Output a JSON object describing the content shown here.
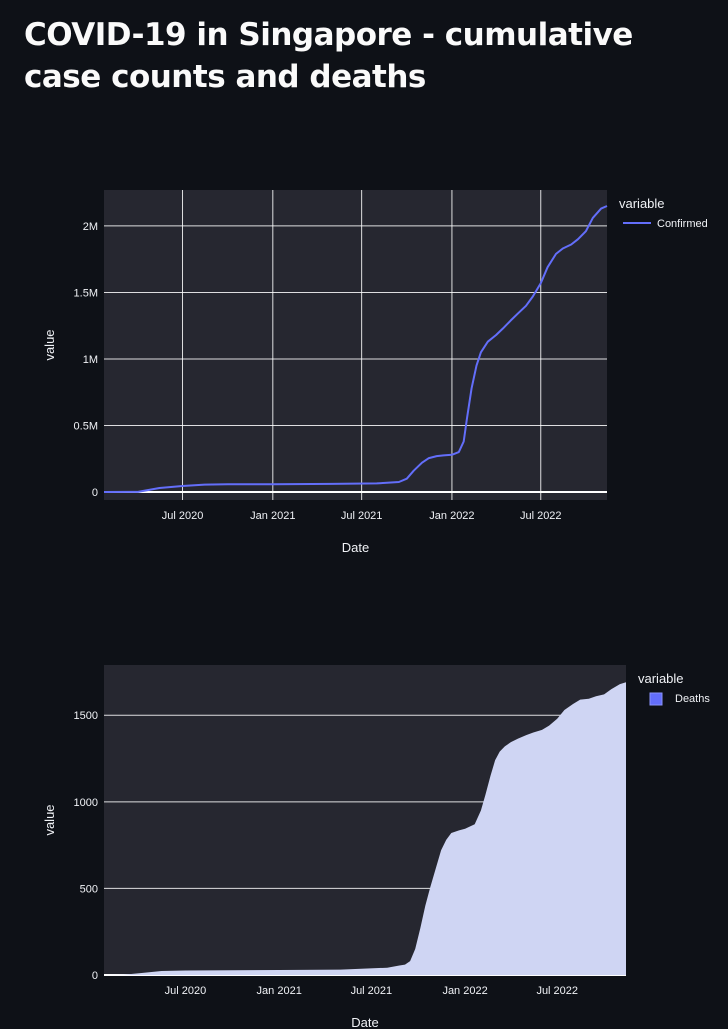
{
  "page": {
    "title": "COVID-19 in Singapore - cumulative case counts and deaths"
  },
  "colors": {
    "background": "#0e1117",
    "plot_background": "#262730",
    "grid": "#ffffff",
    "confirmed_line": "#636efa",
    "deaths_fill": "#cfd5f3",
    "deaths_legend": "#636efa"
  },
  "chart_data": [
    {
      "type": "line",
      "xlabel": "Date",
      "ylabel": "value",
      "xlim": [
        "2020-01-23",
        "2022-11-13"
      ],
      "ylim": [
        -60000,
        2270000
      ],
      "x_ticks": [
        {
          "value": "2020-07-01",
          "label": "Jul 2020"
        },
        {
          "value": "2021-01-01",
          "label": "Jan 2021"
        },
        {
          "value": "2021-07-01",
          "label": "Jul 2021"
        },
        {
          "value": "2022-01-01",
          "label": "Jan 2022"
        },
        {
          "value": "2022-07-01",
          "label": "Jul 2022"
        }
      ],
      "y_ticks": [
        {
          "value": 0,
          "label": "0"
        },
        {
          "value": 500000,
          "label": "0.5M"
        },
        {
          "value": 1000000,
          "label": "1M"
        },
        {
          "value": 1500000,
          "label": "1.5M"
        },
        {
          "value": 2000000,
          "label": "2M"
        }
      ],
      "legend": {
        "title": "variable",
        "position": "top-right"
      },
      "series": [
        {
          "name": "Confirmed",
          "x": [
            "2020-01-23",
            "2020-04-01",
            "2020-05-15",
            "2020-07-01",
            "2020-08-15",
            "2020-10-01",
            "2021-01-01",
            "2021-05-01",
            "2021-08-01",
            "2021-09-15",
            "2021-10-01",
            "2021-10-15",
            "2021-11-01",
            "2021-11-15",
            "2021-12-01",
            "2021-12-15",
            "2022-01-01",
            "2022-01-15",
            "2022-01-25",
            "2022-02-01",
            "2022-02-10",
            "2022-02-20",
            "2022-03-01",
            "2022-03-15",
            "2022-04-01",
            "2022-04-15",
            "2022-05-01",
            "2022-05-15",
            "2022-06-01",
            "2022-06-15",
            "2022-07-01",
            "2022-07-15",
            "2022-08-01",
            "2022-08-15",
            "2022-09-01",
            "2022-09-15",
            "2022-10-01",
            "2022-10-15",
            "2022-11-01",
            "2022-11-13"
          ],
          "y": [
            0,
            1000,
            30000,
            45000,
            56000,
            58000,
            59000,
            61000,
            65000,
            75000,
            100000,
            160000,
            220000,
            255000,
            270000,
            275000,
            280000,
            300000,
            380000,
            560000,
            780000,
            950000,
            1050000,
            1130000,
            1180000,
            1230000,
            1290000,
            1340000,
            1400000,
            1470000,
            1570000,
            1690000,
            1790000,
            1830000,
            1860000,
            1900000,
            1960000,
            2060000,
            2130000,
            2150000
          ]
        }
      ]
    },
    {
      "type": "area",
      "xlabel": "Date",
      "ylabel": "value",
      "xlim": [
        "2020-01-23",
        "2022-11-13"
      ],
      "ylim": [
        0,
        1790
      ],
      "x_ticks": [
        {
          "value": "2020-07-01",
          "label": "Jul 2020"
        },
        {
          "value": "2021-01-01",
          "label": "Jan 2021"
        },
        {
          "value": "2021-07-01",
          "label": "Jul 2021"
        },
        {
          "value": "2022-01-01",
          "label": "Jan 2022"
        },
        {
          "value": "2022-07-01",
          "label": "Jul 2022"
        }
      ],
      "y_ticks": [
        {
          "value": 0,
          "label": "0"
        },
        {
          "value": 500,
          "label": "500"
        },
        {
          "value": 1000,
          "label": "1000"
        },
        {
          "value": 1500,
          "label": "1500"
        }
      ],
      "legend": {
        "title": "variable",
        "position": "top-right"
      },
      "series": [
        {
          "name": "Deaths",
          "x": [
            "2020-01-23",
            "2020-03-01",
            "2020-04-01",
            "2020-05-15",
            "2020-07-01",
            "2020-10-01",
            "2021-01-01",
            "2021-05-01",
            "2021-08-01",
            "2021-08-25",
            "2021-09-05",
            "2021-09-15",
            "2021-09-25",
            "2021-10-05",
            "2021-10-15",
            "2021-10-25",
            "2021-11-05",
            "2021-11-15",
            "2021-11-25",
            "2021-12-05",
            "2021-12-20",
            "2022-01-01",
            "2022-01-20",
            "2022-02-01",
            "2022-02-10",
            "2022-02-20",
            "2022-03-01",
            "2022-03-10",
            "2022-03-20",
            "2022-04-01",
            "2022-04-15",
            "2022-05-01",
            "2022-05-15",
            "2022-06-01",
            "2022-06-15",
            "2022-07-01",
            "2022-07-15",
            "2022-08-01",
            "2022-08-15",
            "2022-09-01",
            "2022-09-15",
            "2022-10-01",
            "2022-10-15",
            "2022-11-01",
            "2022-11-13"
          ],
          "y": [
            0,
            2,
            10,
            23,
            26,
            28,
            29,
            31,
            42,
            55,
            60,
            80,
            150,
            270,
            400,
            510,
            620,
            720,
            780,
            820,
            835,
            845,
            870,
            950,
            1040,
            1150,
            1240,
            1290,
            1320,
            1345,
            1365,
            1385,
            1400,
            1415,
            1440,
            1480,
            1530,
            1565,
            1590,
            1595,
            1610,
            1620,
            1650,
            1680,
            1690
          ]
        }
      ]
    }
  ]
}
